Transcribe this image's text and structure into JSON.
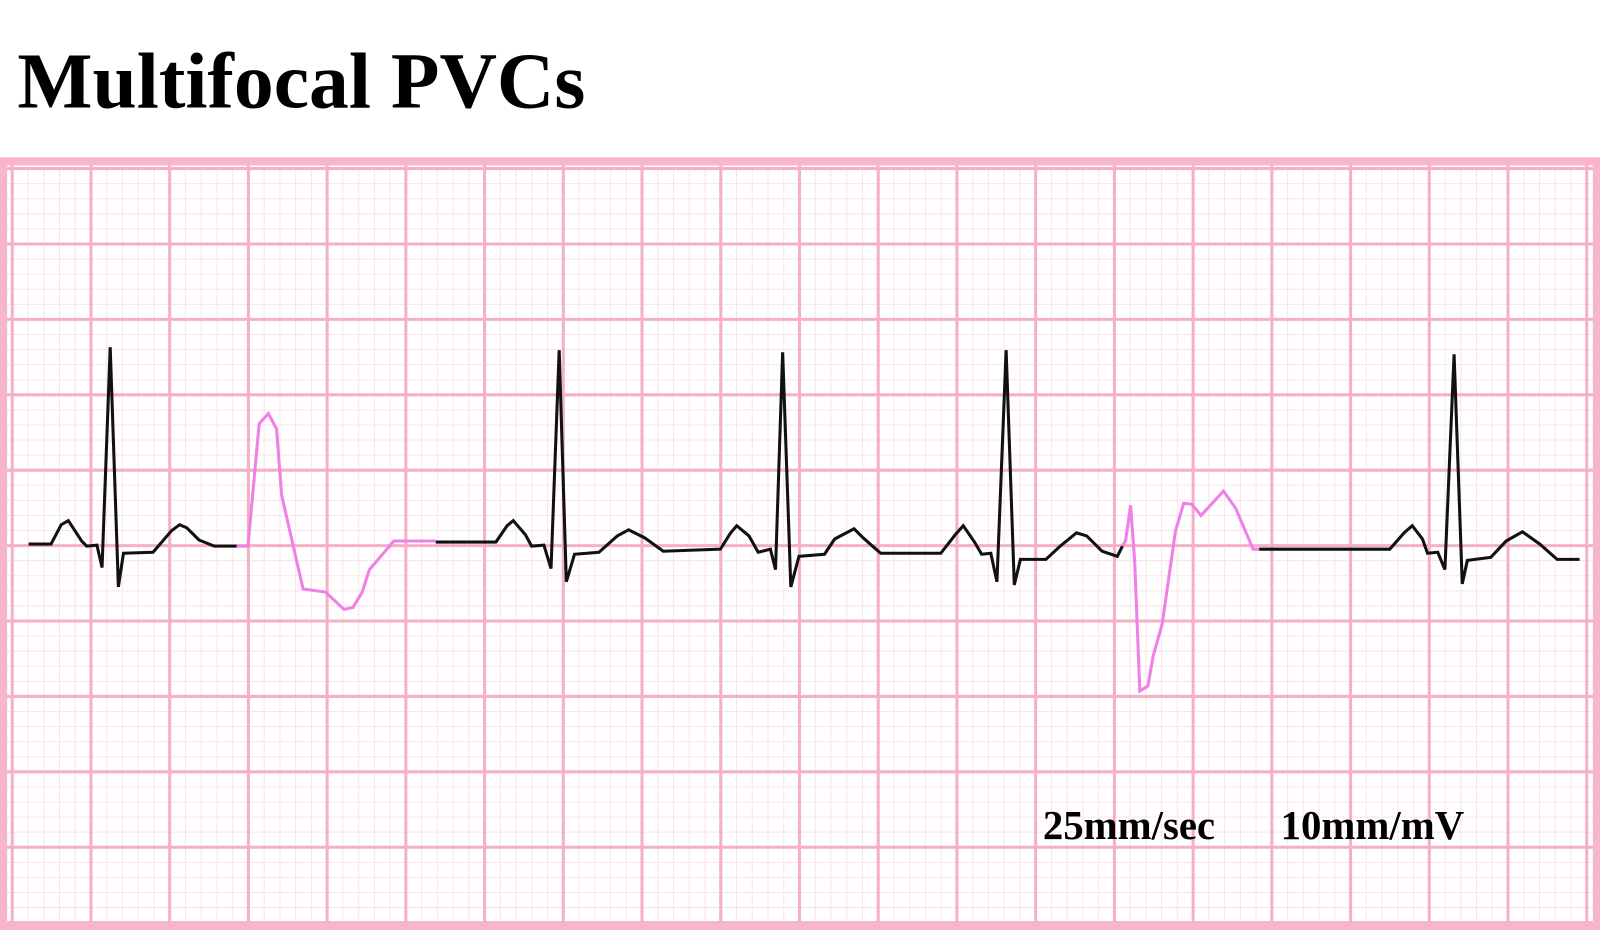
{
  "title": "Multifocal PVCs",
  "calibration": {
    "speed": "25mm/sec",
    "gain": "10mm/mV"
  }
}
